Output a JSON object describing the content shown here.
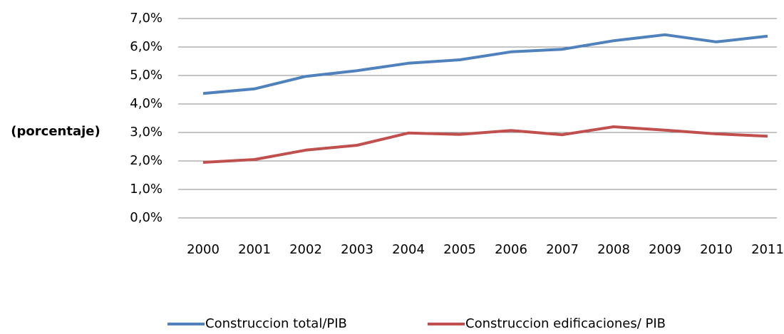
{
  "chart_data": {
    "type": "line",
    "y_label": "(porcentaje)",
    "categories": [
      "2000",
      "2001",
      "2002",
      "2003",
      "2004",
      "2005",
      "2006",
      "2007",
      "2008",
      "2009",
      "2010",
      "2011"
    ],
    "series": [
      {
        "name": "Construccion total/PIB",
        "color": "#4f81bd",
        "values": [
          4.37,
          4.53,
          4.97,
          5.17,
          5.43,
          5.55,
          5.83,
          5.92,
          6.22,
          6.43,
          6.18,
          6.38
        ]
      },
      {
        "name": "Construccion edificaciones/ PIB",
        "color": "#c0504d",
        "values": [
          1.95,
          2.05,
          2.38,
          2.55,
          2.98,
          2.93,
          3.07,
          2.92,
          3.2,
          3.08,
          2.95,
          2.87
        ]
      }
    ],
    "ylim": [
      0,
      7
    ],
    "yticks": [
      {
        "value": 0,
        "label": "0,0%"
      },
      {
        "value": 1,
        "label": "1,0%"
      },
      {
        "value": 2,
        "label": "2,0%"
      },
      {
        "value": 3,
        "label": "3,0%"
      },
      {
        "value": 4,
        "label": "4,0%"
      },
      {
        "value": 5,
        "label": "5,0%"
      },
      {
        "value": 6,
        "label": "6,0%"
      },
      {
        "value": 7,
        "label": "7,0%"
      }
    ],
    "grid": true,
    "legend": "bottom"
  }
}
